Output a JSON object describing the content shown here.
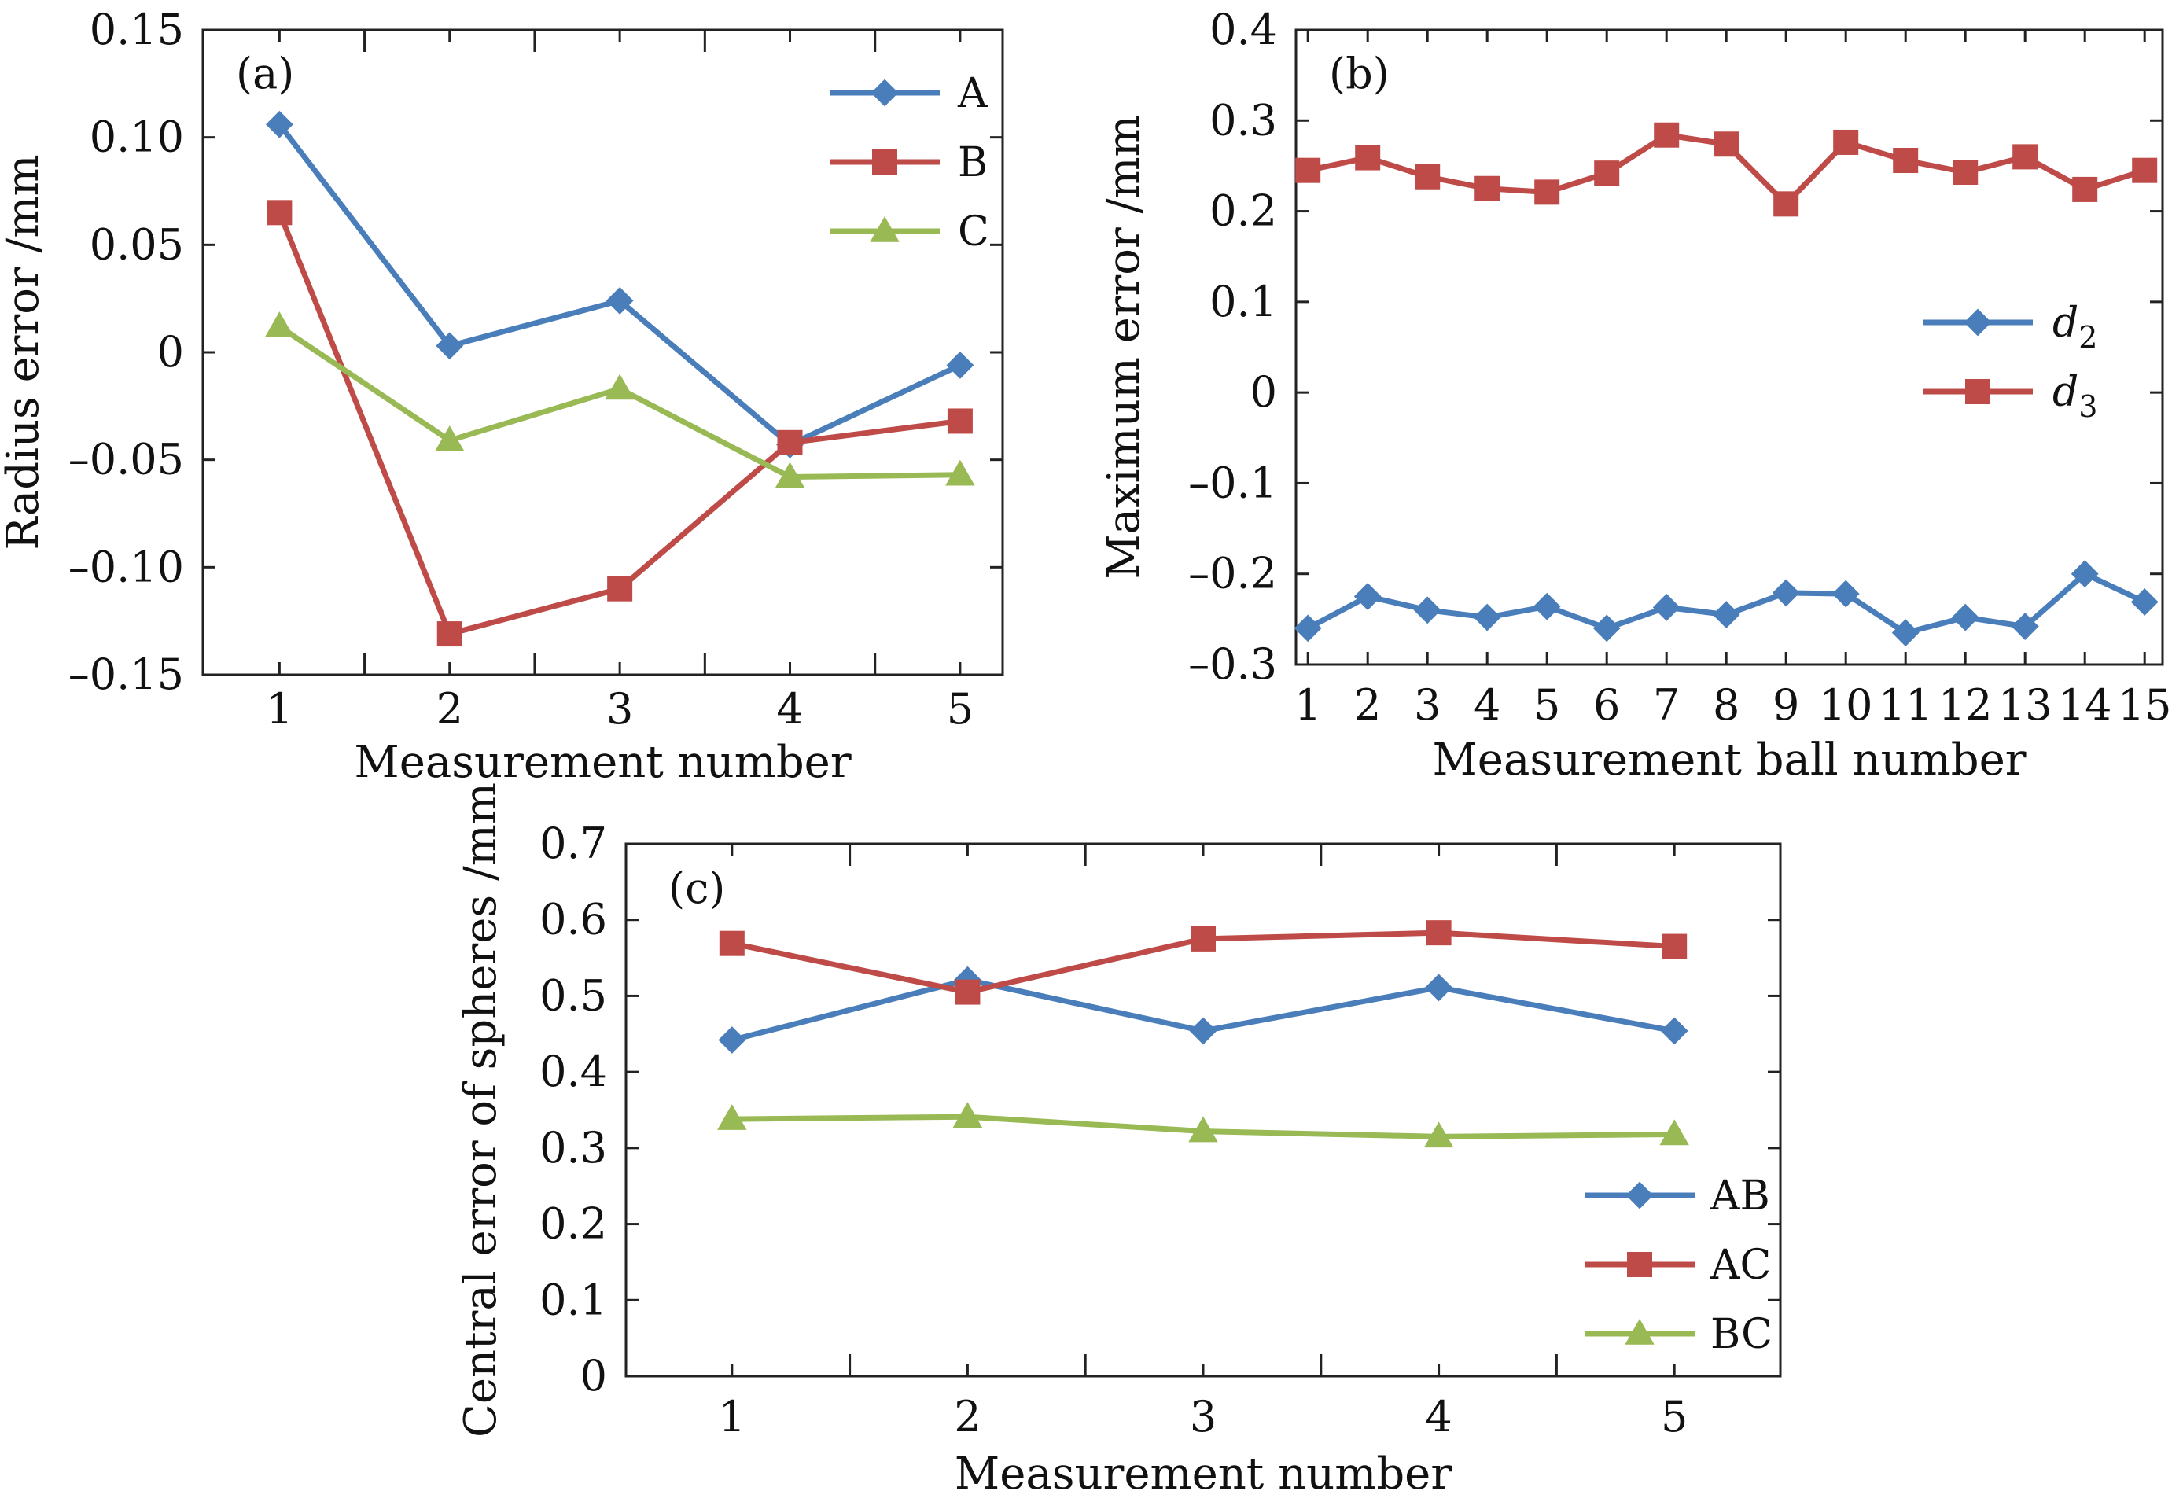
{
  "chart_data": [
    {
      "panel": "(a)",
      "type": "line",
      "title": "",
      "xlabel": "Measurement number",
      "ylabel": "Radius error /mm",
      "x": [
        1,
        2,
        3,
        4,
        5
      ],
      "xlim": [
        0.55,
        5.25
      ],
      "ylim": [
        -0.15,
        0.15
      ],
      "yticks": [
        -0.15,
        -0.1,
        -0.05,
        0,
        0.05,
        0.1,
        0.15
      ],
      "ytick_labels": [
        "–0.15",
        "–0.10",
        "–0.05",
        "0",
        "0.05",
        "0.10",
        "0.15"
      ],
      "xtick_labels": [
        "1",
        "2",
        "3",
        "4",
        "5"
      ],
      "legend_position": "top-right",
      "series": [
        {
          "name": "A",
          "marker": "diamond",
          "color": "#4a7ebb",
          "values": [
            0.106,
            0.003,
            0.024,
            -0.043,
            -0.006
          ]
        },
        {
          "name": "B",
          "marker": "square",
          "color": "#be4b48",
          "values": [
            0.065,
            -0.131,
            -0.11,
            -0.042,
            -0.032
          ]
        },
        {
          "name": "C",
          "marker": "triangle",
          "color": "#98b954",
          "values": [
            0.012,
            -0.041,
            -0.017,
            -0.058,
            -0.057
          ]
        }
      ]
    },
    {
      "panel": "(b)",
      "type": "line",
      "title": "",
      "xlabel": "Measurement ball number",
      "ylabel": "Maximum error /mm",
      "x": [
        1,
        2,
        3,
        4,
        5,
        6,
        7,
        8,
        9,
        10,
        11,
        12,
        13,
        14,
        15
      ],
      "xlim": [
        0.8,
        15.3
      ],
      "ylim": [
        -0.3,
        0.4
      ],
      "yticks": [
        -0.3,
        -0.2,
        -0.1,
        0,
        0.1,
        0.2,
        0.3,
        0.4
      ],
      "ytick_labels": [
        "–0.3",
        "–0.2",
        "–0.1",
        "0",
        "0.1",
        "0.2",
        "0.3",
        "0.4"
      ],
      "xtick_labels": [
        "1",
        "2",
        "3",
        "4",
        "5",
        "6",
        "7",
        "8",
        "9",
        "10",
        "11",
        "12",
        "13",
        "14",
        "15"
      ],
      "legend_position": "right",
      "series": [
        {
          "name": "d",
          "subscript": "2",
          "marker": "diamond",
          "color": "#4a7ebb",
          "values": [
            -0.26,
            -0.225,
            -0.24,
            -0.248,
            -0.236,
            -0.26,
            -0.237,
            -0.245,
            -0.221,
            -0.222,
            -0.265,
            -0.248,
            -0.258,
            -0.2,
            -0.231
          ]
        },
        {
          "name": "d",
          "subscript": "3",
          "marker": "square",
          "color": "#be4b48",
          "values": [
            0.245,
            0.259,
            0.238,
            0.225,
            0.221,
            0.242,
            0.284,
            0.274,
            0.208,
            0.276,
            0.256,
            0.243,
            0.26,
            0.224,
            0.245
          ]
        }
      ]
    },
    {
      "panel": "(c)",
      "type": "line",
      "title": "",
      "xlabel": "Measurement number",
      "ylabel": "Central error of spheres /mm",
      "x": [
        1,
        2,
        3,
        4,
        5
      ],
      "xlim": [
        0.55,
        5.45
      ],
      "ylim": [
        0,
        0.7
      ],
      "yticks": [
        0,
        0.1,
        0.2,
        0.3,
        0.4,
        0.5,
        0.6,
        0.7
      ],
      "ytick_labels": [
        "0",
        "0.1",
        "0.2",
        "0.3",
        "0.4",
        "0.5",
        "0.6",
        "0.7"
      ],
      "xtick_labels": [
        "1",
        "2",
        "3",
        "4",
        "5"
      ],
      "legend_position": "bottom-right",
      "series": [
        {
          "name": "AB",
          "marker": "diamond",
          "color": "#4a7ebb",
          "values": [
            0.442,
            0.521,
            0.454,
            0.511,
            0.454
          ]
        },
        {
          "name": "AC",
          "marker": "square",
          "color": "#be4b48",
          "values": [
            0.569,
            0.505,
            0.575,
            0.583,
            0.565
          ]
        },
        {
          "name": "BC",
          "marker": "triangle",
          "color": "#98b954",
          "values": [
            0.338,
            0.341,
            0.322,
            0.315,
            0.318
          ]
        }
      ]
    }
  ]
}
